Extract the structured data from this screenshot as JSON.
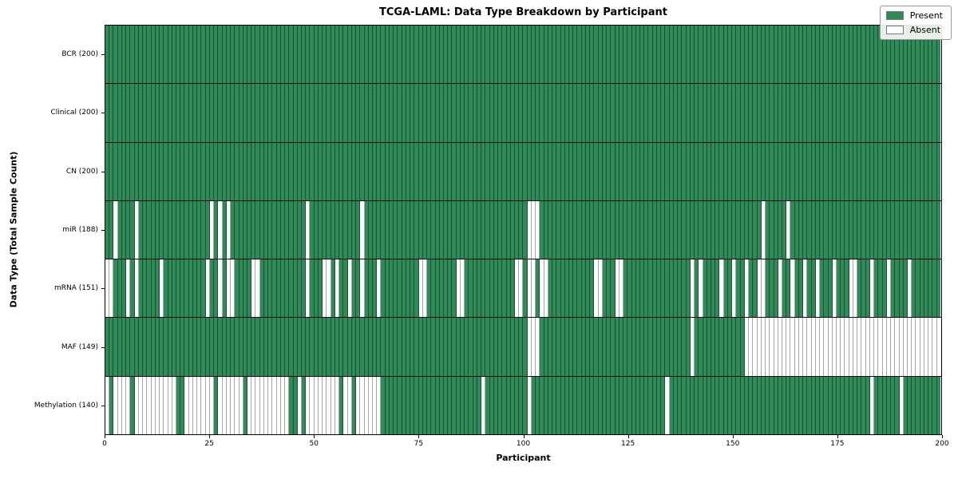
{
  "title": "TCGA-LAML: Data Type Breakdown by Participant",
  "xlabel": "Participant",
  "ylabel": "Data Type (Total Sample Count)",
  "legend": [
    {
      "label": "Present",
      "color": "#2e8b57"
    },
    {
      "label": "Absent",
      "color": "#ffffff"
    }
  ],
  "chart_data": {
    "type": "heatmap",
    "title": "TCGA-LAML: Data Type Breakdown by Participant",
    "xlabel": "Participant",
    "ylabel": "Data Type (Total Sample Count)",
    "x_range": [
      0,
      200
    ],
    "xticks": [
      0,
      25,
      50,
      75,
      100,
      125,
      150,
      175,
      200
    ],
    "n_participants": 200,
    "legend_position": "upper right",
    "grid": "cell-borders",
    "colors": {
      "present": "#2e8b57",
      "absent": "#ffffff",
      "row_divider": "#0a0a0a",
      "plot_border": "#000000"
    },
    "rows": [
      {
        "label": "BCR (200)",
        "name": "BCR",
        "present_count": 200,
        "absent": []
      },
      {
        "label": "Clinical (200)",
        "name": "Clinical",
        "present_count": 200,
        "absent": []
      },
      {
        "label": "CN (200)",
        "name": "CN",
        "present_count": 200,
        "absent": []
      },
      {
        "label": "miR (188)",
        "name": "miR",
        "present_count": 188,
        "absent": [
          2,
          7,
          25,
          27,
          29,
          48,
          61,
          101,
          102,
          103,
          157,
          163
        ]
      },
      {
        "label": "mRNA (151)",
        "name": "mRNA",
        "present_count": 151,
        "absent": [
          0,
          1,
          5,
          7,
          13,
          24,
          27,
          29,
          30,
          35,
          36,
          48,
          52,
          53,
          55,
          58,
          61,
          65,
          75,
          76,
          84,
          85,
          98,
          99,
          101,
          102,
          104,
          105,
          117,
          118,
          122,
          123,
          140,
          142,
          147,
          150,
          153,
          156,
          157,
          161,
          164,
          167,
          170,
          174,
          178,
          179,
          183,
          187,
          192
        ]
      },
      {
        "label": "MAF (149)",
        "name": "MAF",
        "present_count": 149,
        "absent": [
          101,
          102,
          103,
          140,
          153,
          154,
          155,
          156,
          157,
          158,
          159,
          160,
          161,
          162,
          163,
          164,
          165,
          166,
          167,
          168,
          169,
          170,
          171,
          172,
          173,
          174,
          175,
          176,
          177,
          178,
          179,
          180,
          181,
          182,
          183,
          184,
          185,
          186,
          187,
          188,
          189,
          190,
          191,
          192,
          193,
          194,
          195,
          196,
          197,
          198,
          199
        ]
      },
      {
        "label": "Methylation (140)",
        "name": "Methylation",
        "present_count": 140,
        "absent": [
          0,
          2,
          3,
          4,
          5,
          7,
          8,
          9,
          10,
          11,
          12,
          13,
          14,
          15,
          16,
          19,
          20,
          21,
          22,
          23,
          24,
          25,
          27,
          28,
          29,
          30,
          31,
          32,
          34,
          35,
          36,
          37,
          38,
          39,
          40,
          41,
          42,
          43,
          46,
          48,
          49,
          50,
          51,
          52,
          53,
          54,
          55,
          57,
          58,
          60,
          61,
          62,
          63,
          64,
          65,
          90,
          101,
          134,
          183,
          190
        ]
      }
    ]
  }
}
